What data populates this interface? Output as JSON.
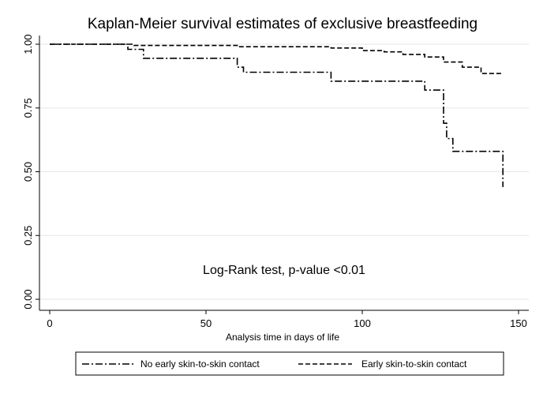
{
  "chart_data": {
    "type": "line",
    "step": true,
    "title": "Kaplan-Meier survival estimates of exclusive breastfeeding",
    "xlabel": "Analysis time in days of life",
    "ylabel": "",
    "xlim": [
      0,
      150
    ],
    "ylim": [
      0,
      1
    ],
    "xticks": [
      0,
      50,
      100,
      150
    ],
    "xtick_labels": [
      "0",
      "50",
      "100",
      "150"
    ],
    "yticks": [
      0,
      0.25,
      0.5,
      0.75,
      1
    ],
    "ytick_labels": [
      "0.00",
      "0.25",
      "0.50",
      "0.75",
      "1.00"
    ],
    "grid": true,
    "legend_position": "bottom",
    "annotation": "Log-Rank test, p-value <0.01",
    "series": [
      {
        "name": "No early skin-to-skin contact",
        "style": "dash-dot",
        "color": "#000000",
        "points": [
          [
            0,
            1.0
          ],
          [
            25,
            1.0
          ],
          [
            25,
            0.98
          ],
          [
            30,
            0.98
          ],
          [
            30,
            0.945
          ],
          [
            60,
            0.945
          ],
          [
            60,
            0.91
          ],
          [
            62,
            0.91
          ],
          [
            62,
            0.89
          ],
          [
            90,
            0.89
          ],
          [
            90,
            0.855
          ],
          [
            120,
            0.855
          ],
          [
            120,
            0.82
          ],
          [
            126,
            0.82
          ],
          [
            126,
            0.69
          ],
          [
            127,
            0.69
          ],
          [
            127,
            0.63
          ],
          [
            129,
            0.63
          ],
          [
            129,
            0.58
          ],
          [
            145,
            0.58
          ],
          [
            145,
            0.44
          ]
        ]
      },
      {
        "name": "Early skin-to-skin contact",
        "style": "dashed",
        "color": "#000000",
        "points": [
          [
            0,
            1.0
          ],
          [
            27,
            1.0
          ],
          [
            27,
            0.995
          ],
          [
            60,
            0.995
          ],
          [
            60,
            0.99
          ],
          [
            90,
            0.99
          ],
          [
            90,
            0.985
          ],
          [
            100,
            0.985
          ],
          [
            100,
            0.975
          ],
          [
            107,
            0.975
          ],
          [
            107,
            0.97
          ],
          [
            113,
            0.97
          ],
          [
            113,
            0.96
          ],
          [
            120,
            0.96
          ],
          [
            120,
            0.95
          ],
          [
            126,
            0.95
          ],
          [
            126,
            0.93
          ],
          [
            132,
            0.93
          ],
          [
            132,
            0.91
          ],
          [
            138,
            0.91
          ],
          [
            138,
            0.885
          ],
          [
            145,
            0.885
          ]
        ]
      }
    ]
  }
}
